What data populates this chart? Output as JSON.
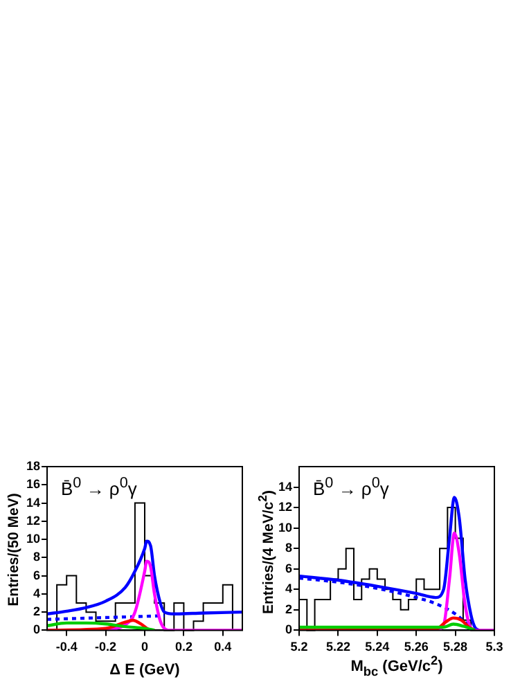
{
  "chart_data": [
    {
      "type": "histogram",
      "xlabel": "Δ E (GeV)",
      "ylabel": "Entries/(50 MeV)",
      "annotations": [
        "B̄$^{0}$ → ρ$^{0}$γ"
      ],
      "xlim": [
        -0.5,
        0.5
      ],
      "xticks": [
        -0.4,
        -0.2,
        0,
        0.2,
        0.4
      ],
      "ylim": [
        0,
        18
      ],
      "yticks": [
        0,
        2,
        4,
        6,
        8,
        10,
        12,
        14,
        16,
        18
      ],
      "grid": false,
      "legend": false,
      "series": [
        {
          "type": "histogram",
          "color": "#000000",
          "bins": [
            -0.45,
            -0.4,
            -0.35,
            -0.3,
            -0.25,
            -0.2,
            -0.15,
            -0.1,
            -0.05,
            0,
            0.05,
            0.1,
            0.15,
            0.2,
            0.25,
            0.3,
            0.35,
            0.4,
            0.45
          ],
          "values": [
            5,
            6,
            3,
            2,
            1,
            1,
            3,
            3,
            14,
            6,
            3,
            0,
            3,
            0,
            1,
            3,
            3,
            5
          ]
        },
        {
          "type": "line",
          "color": "#00cc00",
          "x": [
            -0.5,
            -0.4,
            -0.3,
            -0.2,
            -0.1,
            0,
            0.05
          ],
          "values": [
            0.5,
            0.8,
            0.8,
            0.7,
            0.4,
            0.2,
            0
          ]
        },
        {
          "type": "line",
          "color": "#ff0000",
          "x": [
            -0.5,
            -0.2,
            -0.1,
            -0.06,
            -0.02,
            0.02,
            0.05
          ],
          "values": [
            0,
            0.2,
            0.9,
            1.1,
            0.7,
            0.1,
            0
          ]
        },
        {
          "type": "line",
          "color": "#ff00ff",
          "x": [
            -0.5,
            -0.2,
            -0.1,
            -0.05,
            0,
            0.01,
            0.03,
            0.05,
            0.08,
            0.12,
            0.5
          ],
          "values": [
            0,
            0.1,
            0.6,
            2,
            6.5,
            7.6,
            7,
            4,
            1,
            0,
            0
          ]
        },
        {
          "type": "line",
          "color": "#0000ff",
          "line_style": "dashed",
          "x": [
            -0.5,
            0.1
          ],
          "values": [
            1.2,
            1.6
          ]
        },
        {
          "type": "line",
          "color": "#0000ff",
          "x": [
            -0.5,
            -0.4,
            -0.3,
            -0.2,
            -0.1,
            -0.05,
            0,
            0.01,
            0.03,
            0.05,
            0.08,
            0.1,
            0.15,
            0.3,
            0.5
          ],
          "values": [
            1.8,
            2.1,
            2.5,
            3.2,
            4.7,
            6.5,
            9,
            9.8,
            9.3,
            6,
            3,
            2,
            1.8,
            1.9,
            2
          ]
        }
      ]
    },
    {
      "type": "histogram",
      "xlabel": "M$_{bc}$ (GeV/c$^{2}$)",
      "ylabel": "Entries/(4 MeV/c$^{2}$)",
      "annotations": [
        "B̄$^{0}$ → ρ$^{0}$γ"
      ],
      "xlim": [
        5.2,
        5.3
      ],
      "xticks": [
        5.2,
        5.22,
        5.24,
        5.26,
        5.28,
        5.3
      ],
      "ylim": [
        0,
        16
      ],
      "yticks": [
        0,
        2,
        4,
        6,
        8,
        10,
        12,
        14
      ],
      "grid": false,
      "legend": false,
      "series": [
        {
          "type": "histogram",
          "color": "#000000",
          "bins": [
            5.2,
            5.204,
            5.208,
            5.212,
            5.216,
            5.22,
            5.224,
            5.228,
            5.232,
            5.236,
            5.24,
            5.244,
            5.248,
            5.252,
            5.256,
            5.26,
            5.264,
            5.268,
            5.272,
            5.276,
            5.28,
            5.284,
            5.288,
            5.292,
            5.296,
            5.3
          ],
          "values": [
            3,
            0,
            3,
            3,
            5,
            6,
            8,
            3,
            5,
            6,
            5,
            4,
            3,
            2,
            3,
            5,
            4,
            4,
            8,
            12,
            9,
            1,
            0,
            0,
            0
          ]
        },
        {
          "type": "line",
          "color": "#00cc00",
          "x": [
            5.2,
            5.26,
            5.274,
            5.279,
            5.284,
            5.29
          ],
          "values": [
            0.3,
            0.3,
            0.3,
            0.6,
            0.4,
            0
          ]
        },
        {
          "type": "line",
          "color": "#ff0000",
          "x": [
            5.2,
            5.27,
            5.275,
            5.279,
            5.283,
            5.287,
            5.29
          ],
          "values": [
            0,
            0.1,
            0.8,
            1.2,
            1,
            0.3,
            0
          ]
        },
        {
          "type": "line",
          "color": "#ff00ff",
          "x": [
            5.2,
            5.27,
            5.274,
            5.277,
            5.2795,
            5.282,
            5.285,
            5.288,
            5.29,
            5.3
          ],
          "values": [
            0,
            0,
            0.5,
            5,
            9.5,
            7.5,
            2.5,
            0.2,
            0,
            0
          ]
        },
        {
          "type": "line",
          "color": "#0000ff",
          "line_style": "dashed",
          "x": [
            5.2,
            5.22,
            5.24,
            5.26,
            5.27,
            5.28,
            5.286,
            5.289
          ],
          "values": [
            5.1,
            4.7,
            4.1,
            3.2,
            2.6,
            1.6,
            0.6,
            0
          ]
        },
        {
          "type": "line",
          "color": "#0000ff",
          "x": [
            5.2,
            5.22,
            5.24,
            5.26,
            5.27,
            5.274,
            5.277,
            5.2795,
            5.282,
            5.285,
            5.288,
            5.29,
            5.292
          ],
          "values": [
            5.3,
            4.9,
            4.3,
            3.6,
            3.2,
            4,
            9,
            13,
            11,
            5,
            1.5,
            0.3,
            0
          ]
        }
      ]
    }
  ]
}
